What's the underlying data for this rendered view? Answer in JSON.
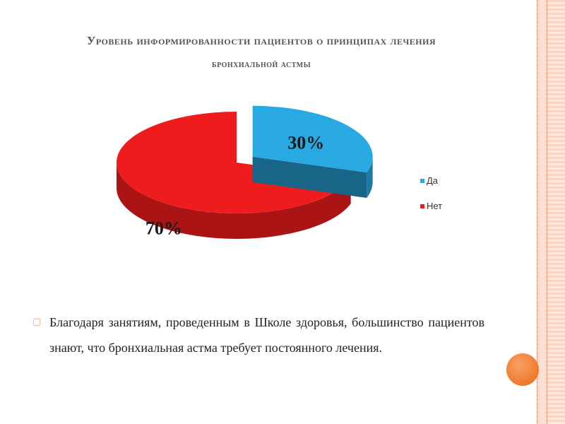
{
  "slide": {
    "title_line1": "Уровень информированности пациентов о принципах лечения",
    "title_line2": "бронхиальной астмы",
    "bullet_text": "Благодаря занятиям, проведенным в Школе здоровья, большинство пациентов знают, что бронхиальная астма требует постоянного лечения.",
    "bullet_icon": "hollow-square-bullet-icon",
    "accent_color": "#f07a2c"
  },
  "chart_data": {
    "type": "pie",
    "style": "3d-exploded",
    "title": "",
    "categories": [
      "Да",
      "Нет"
    ],
    "values": [
      30,
      70
    ],
    "data_labels": [
      "30%",
      "70%"
    ],
    "colors": [
      "#29a9e1",
      "#ee1c1c"
    ],
    "legend": {
      "placement": "right",
      "entries": [
        {
          "label": "Да",
          "color": "#29a9e1"
        },
        {
          "label": "Нет",
          "color": "#ee1c1c"
        }
      ]
    }
  }
}
